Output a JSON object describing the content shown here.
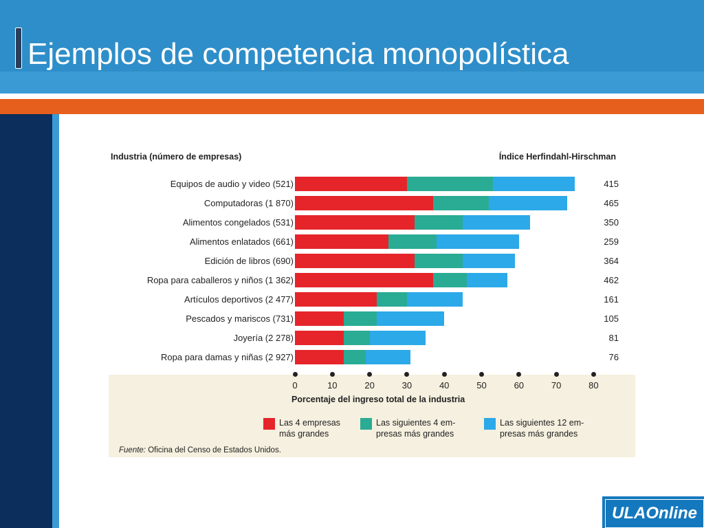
{
  "slide": {
    "title": "Ejemplos de competencia monopolística",
    "logo_text": "ULAOnline"
  },
  "colors": {
    "header_blue": "#2e8ec9",
    "orange": "#e75f1c",
    "navy": "#0c2e5c",
    "red": "#e5252a",
    "teal": "#2aab94",
    "light_blue": "#2ca9e8"
  },
  "chart_data": {
    "type": "bar",
    "orientation": "horizontal",
    "stacked": true,
    "left_header": "Industria (número de empresas)",
    "right_header": "Índice Herfindahl-Hirschman",
    "xlabel": "Porcentaje del ingreso total de la industria",
    "xlim": [
      0,
      80
    ],
    "xticks": [
      "0",
      "10",
      "20",
      "30",
      "40",
      "50",
      "60",
      "70",
      "80"
    ],
    "categories": [
      "Equipos de audio y video (521)",
      "Computadoras (1 870)",
      "Alimentos congelados (531)",
      "Alimentos enlatados (661)",
      "Edición de libros (690)",
      "Ropa para caballeros y niños (1 362)",
      "Artículos deportivos (2 477)",
      "Pescados y mariscos (731)",
      "Joyería (2 278)",
      "Ropa para damas y niñas (2 927)"
    ],
    "hhi": [
      "415",
      "465",
      "350",
      "259",
      "364",
      "462",
      "161",
      "105",
      "81",
      "76"
    ],
    "series": [
      {
        "name": "Las 4 empresas más grandes",
        "color": "#e5252a",
        "values": [
          30,
          37,
          32,
          25,
          32,
          37,
          22,
          13,
          13,
          13
        ]
      },
      {
        "name": "Las siguientes 4 empresas más grandes",
        "color": "#2aab94",
        "values": [
          23,
          15,
          13,
          13,
          13,
          9,
          8,
          9,
          7,
          6
        ]
      },
      {
        "name": "Las siguientes 12 empresas más grandes",
        "color": "#2ca9e8",
        "values": [
          22,
          21,
          18,
          22,
          14,
          11,
          15,
          18,
          15,
          12
        ]
      }
    ],
    "legend": [
      [
        "Las 4 empresas",
        "más grandes"
      ],
      [
        "Las siguientes 4 em-",
        "presas más grandes"
      ],
      [
        "Las siguientes 12 em-",
        "presas más grandes"
      ]
    ],
    "source_label": "Fuente:",
    "source_text": "Oficina del Censo de Estados Unidos."
  }
}
